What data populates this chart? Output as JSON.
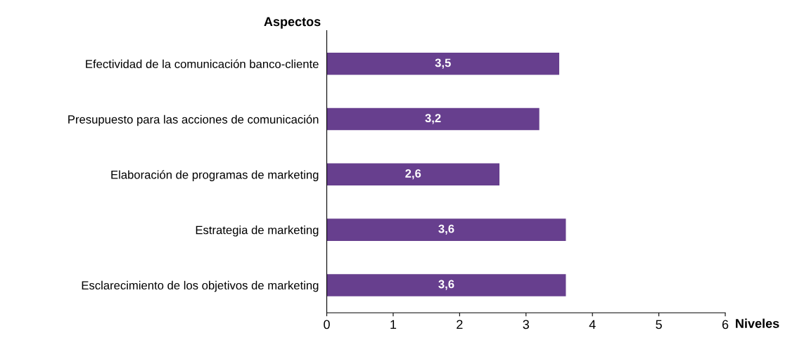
{
  "chart_data": {
    "type": "bar",
    "orientation": "horizontal",
    "categories": [
      "Efectividad de la comunicación banco-cliente",
      "Presupuesto para las acciones de comunicación",
      "Elaboración de programas de marketing",
      "Estrategia de marketing",
      "Esclarecimiento de los objetivos de marketing"
    ],
    "values": [
      3.5,
      3.2,
      2.6,
      3.6,
      3.6
    ],
    "value_labels": [
      "3,5",
      "3,2",
      "2,6",
      "3,6",
      "3,6"
    ],
    "color": "#673f8e",
    "xlim": [
      0,
      6
    ],
    "xticks": [
      0,
      1,
      2,
      3,
      4,
      5,
      6
    ],
    "xlabel": "Niveles",
    "ylabel": "Aspectos",
    "grid": false
  }
}
